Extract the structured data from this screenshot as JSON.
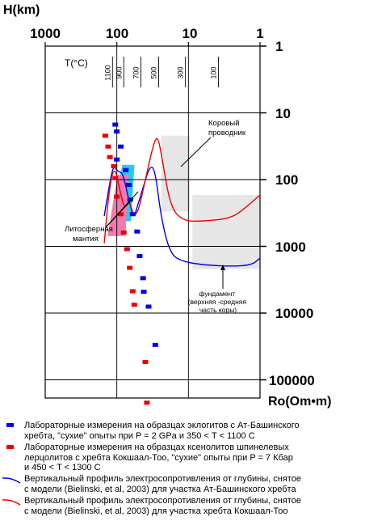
{
  "chart_data": {
    "type": "scatter",
    "x_axis": {
      "label": "Ro(Om•m)",
      "scale": "log",
      "range": [
        1000,
        1
      ],
      "tick_labels": [
        "1000",
        "100",
        "10",
        "1"
      ]
    },
    "y_axis": {
      "label": "H(km)",
      "scale": "log",
      "range": [
        1,
        200000
      ],
      "tick_labels": [
        "1",
        "10",
        "100",
        "1000",
        "10000",
        "100000"
      ]
    },
    "temperature_axis": {
      "label": "T(°C)",
      "ticks": [
        {
          "label": "1100",
          "ro": 115
        },
        {
          "label": "900",
          "ro": 80
        },
        {
          "label": "700",
          "ro": 46
        },
        {
          "label": "500",
          "ro": 26
        },
        {
          "label": "300",
          "ro": 11
        },
        {
          "label": "100",
          "ro": 3.8
        }
      ]
    },
    "series": [
      {
        "kind": "points",
        "color": "#0000ee",
        "points": [
          {
            "ro": 105,
            "h": 15
          },
          {
            "ro": 100,
            "h": 19
          },
          {
            "ro": 88,
            "h": 32
          },
          {
            "ro": 100,
            "h": 50
          },
          {
            "ro": 75,
            "h": 72
          },
          {
            "ro": 68,
            "h": 120
          },
          {
            "ro": 65,
            "h": 200
          },
          {
            "ro": 60,
            "h": 330
          },
          {
            "ro": 52,
            "h": 600
          },
          {
            "ro": 48,
            "h": 1400
          },
          {
            "ro": 43,
            "h": 3000
          },
          {
            "ro": 42,
            "h": 4800
          },
          {
            "ro": 36,
            "h": 8000
          },
          {
            "ro": 29,
            "h": 30000
          }
        ]
      },
      {
        "kind": "points",
        "color": "#ee0000",
        "points": [
          {
            "ro": 145,
            "h": 22
          },
          {
            "ro": 132,
            "h": 32
          },
          {
            "ro": 125,
            "h": 46
          },
          {
            "ro": 110,
            "h": 63
          },
          {
            "ro": 105,
            "h": 95
          },
          {
            "ro": 100,
            "h": 180
          },
          {
            "ro": 88,
            "h": 330
          },
          {
            "ro": 80,
            "h": 620
          },
          {
            "ro": 72,
            "h": 1100
          },
          {
            "ro": 66,
            "h": 2100
          },
          {
            "ro": 60,
            "h": 4700
          },
          {
            "ro": 57,
            "h": 7500
          },
          {
            "ro": 40,
            "h": 54000
          },
          {
            "ro": 38,
            "h": 220000
          }
        ]
      },
      {
        "kind": "line",
        "color": "#0000ee",
        "points": [
          {
            "ro": 150,
            "h": 350
          },
          {
            "ro": 130,
            "h": 140
          },
          {
            "ro": 112,
            "h": 60
          },
          {
            "ro": 98,
            "h": 75
          },
          {
            "ro": 82,
            "h": 80
          },
          {
            "ro": 70,
            "h": 180
          },
          {
            "ro": 58,
            "h": 380
          },
          {
            "ro": 52,
            "h": 260
          },
          {
            "ro": 42,
            "h": 120
          },
          {
            "ro": 34,
            "h": 60
          },
          {
            "ro": 29,
            "h": 75
          },
          {
            "ro": 24,
            "h": 380
          },
          {
            "ro": 18,
            "h": 1300
          },
          {
            "ro": 12,
            "h": 1700
          },
          {
            "ro": 6,
            "h": 1900
          },
          {
            "ro": 2.5,
            "h": 2000
          },
          {
            "ro": 1.3,
            "h": 1900
          },
          {
            "ro": 1,
            "h": 1500
          }
        ]
      },
      {
        "kind": "line",
        "color": "#ee0000",
        "points": [
          {
            "ro": 150,
            "h": 900
          },
          {
            "ro": 128,
            "h": 140
          },
          {
            "ro": 108,
            "h": 60
          },
          {
            "ro": 90,
            "h": 150
          },
          {
            "ro": 78,
            "h": 280
          },
          {
            "ro": 68,
            "h": 200
          },
          {
            "ro": 58,
            "h": 350
          },
          {
            "ro": 50,
            "h": 300
          },
          {
            "ro": 40,
            "h": 100
          },
          {
            "ro": 31,
            "h": 30
          },
          {
            "ro": 27,
            "h": 22
          },
          {
            "ro": 24,
            "h": 40
          },
          {
            "ro": 18,
            "h": 250
          },
          {
            "ro": 12,
            "h": 420
          },
          {
            "ro": 6,
            "h": 420
          },
          {
            "ro": 2.5,
            "h": 380
          },
          {
            "ro": 1.5,
            "h": 250
          },
          {
            "ro": 1,
            "h": 170
          }
        ]
      }
    ],
    "regions": [
      {
        "ro": [
          24,
          9.5
        ],
        "h": [
          22,
          300
        ],
        "color": "#e6e6e6"
      },
      {
        "ro": [
          8.8,
          1
        ],
        "h": [
          170,
          2200
        ],
        "color": "#e6e6e6"
      },
      {
        "ro": [
          110,
          60
        ],
        "h": [
          60,
          420
        ],
        "color": "#22ccee"
      },
      {
        "ro": [
          125,
          72
        ],
        "h": [
          85,
          700
        ],
        "color": "#f27aae"
      }
    ],
    "annotations": [
      {
        "text": "Коровый\nпроводник"
      },
      {
        "text": "Литосферная\nмантия"
      },
      {
        "text": "фундамент\n(верхняя -средняя\nчасть коры)"
      }
    ],
    "grid": true
  },
  "legend": [
    {
      "marker": "square",
      "color": "#0000ee",
      "lines": [
        "Лабораторные измерения на образцах эклогитов с Ат-Башинского",
        "хребта, \"сухие\" опыты при P = 2 GPa и 350 < T < 1100 C"
      ]
    },
    {
      "marker": "square",
      "color": "#ee0000",
      "lines": [
        "Лабораторные измерения на образцах ксенолитов шпинелевых",
        "лерцолитов с хребта Кокшаал-Тоо, \"сухие\" опыты при P = 7 Кбар",
        "и 450 < T < 1300 C"
      ]
    },
    {
      "marker": "line",
      "color": "#0000ee",
      "lines": [
        "Вертикальный профиль электросопротивления от глубины, снятое",
        "с модели (Bielinski, et al, 2003) для участка Ат-Башинского хребта"
      ]
    },
    {
      "marker": "line",
      "color": "#ee0000",
      "lines": [
        "Вертикальный профиль электросопротивления от глубины, снятое",
        "с модели (Bielinski, et al, 2003) для участка  хребта Кокшаал-Тоо"
      ]
    }
  ]
}
